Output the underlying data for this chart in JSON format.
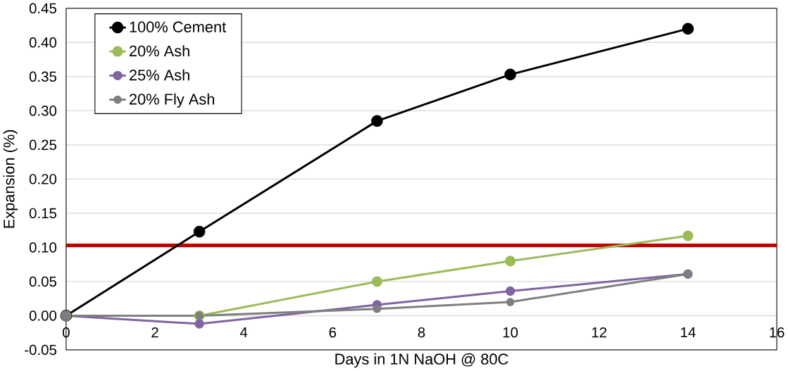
{
  "chart_data": {
    "type": "line",
    "xlabel": "Days in 1N NaOH @ 80C",
    "ylabel": "Expansion (%)",
    "x": [
      0,
      3,
      7,
      10,
      14
    ],
    "series": [
      {
        "name": "100% Cement",
        "color": "#000000",
        "values": [
          0,
          0.123,
          0.285,
          0.353,
          0.42
        ]
      },
      {
        "name": "20% Ash",
        "color": "#9bbb59",
        "values": [
          0,
          0,
          0.05,
          0.08,
          0.117
        ]
      },
      {
        "name": "25% Ash",
        "color": "#8064a2",
        "values": [
          0,
          -0.012,
          0.016,
          0.036,
          0.061
        ]
      },
      {
        "name": "20% Fly Ash",
        "color": "#7f7f7f",
        "values": [
          0,
          0,
          0.01,
          0.02,
          0.061
        ]
      }
    ],
    "xlim": [
      0,
      16
    ],
    "xticks": [
      0,
      2,
      4,
      6,
      8,
      10,
      12,
      14,
      16
    ],
    "ylim": [
      -0.05,
      0.45
    ],
    "yticks": [
      {
        "value": -0.05,
        "label": "-0.05"
      },
      {
        "value": 0,
        "label": "0.00"
      },
      {
        "value": 0.05,
        "label": "0.05"
      },
      {
        "value": 0.1,
        "label": "0.10"
      },
      {
        "value": 0.15,
        "label": "0.15"
      },
      {
        "value": 0.2,
        "label": "0.20"
      },
      {
        "value": 0.25,
        "label": "0.25"
      },
      {
        "value": 0.3,
        "label": "0.30"
      },
      {
        "value": 0.35,
        "label": "0.35"
      },
      {
        "value": 0.4,
        "label": "0.40"
      },
      {
        "value": 0.45,
        "label": "0.45"
      }
    ],
    "ref_lines": [
      {
        "axis": "y",
        "value": 0.103,
        "color": "#c00000"
      }
    ],
    "grid": "y",
    "legend": "top left",
    "marker": "circle",
    "line_style": "solid"
  }
}
